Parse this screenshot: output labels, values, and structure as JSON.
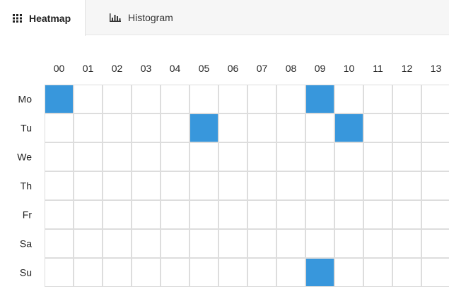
{
  "tabs": [
    {
      "label": "Heatmap",
      "icon": "grid-icon",
      "active": true
    },
    {
      "label": "Histogram",
      "icon": "bar-chart-icon",
      "active": false
    }
  ],
  "colors": {
    "cell_on": "#3897dc",
    "cell_off": "#ffffff",
    "grid": "#dddddd"
  },
  "chart_data": {
    "type": "heatmap",
    "x": [
      "00",
      "01",
      "02",
      "03",
      "04",
      "05",
      "06",
      "07",
      "08",
      "09",
      "10",
      "11",
      "12",
      "13"
    ],
    "y": [
      "Mo",
      "Tu",
      "We",
      "Th",
      "Fr",
      "Sa",
      "Su"
    ],
    "values": [
      [
        1,
        0,
        0,
        0,
        0,
        0,
        0,
        0,
        0,
        1,
        0,
        0,
        0,
        0
      ],
      [
        0,
        0,
        0,
        0,
        0,
        1,
        0,
        0,
        0,
        0,
        1,
        0,
        0,
        0
      ],
      [
        0,
        0,
        0,
        0,
        0,
        0,
        0,
        0,
        0,
        0,
        0,
        0,
        0,
        0
      ],
      [
        0,
        0,
        0,
        0,
        0,
        0,
        0,
        0,
        0,
        0,
        0,
        0,
        0,
        0
      ],
      [
        0,
        0,
        0,
        0,
        0,
        0,
        0,
        0,
        0,
        0,
        0,
        0,
        0,
        0
      ],
      [
        0,
        0,
        0,
        0,
        0,
        0,
        0,
        0,
        0,
        0,
        0,
        0,
        0,
        0
      ],
      [
        0,
        0,
        0,
        0,
        0,
        0,
        0,
        0,
        0,
        1,
        0,
        0,
        0,
        0
      ]
    ]
  }
}
